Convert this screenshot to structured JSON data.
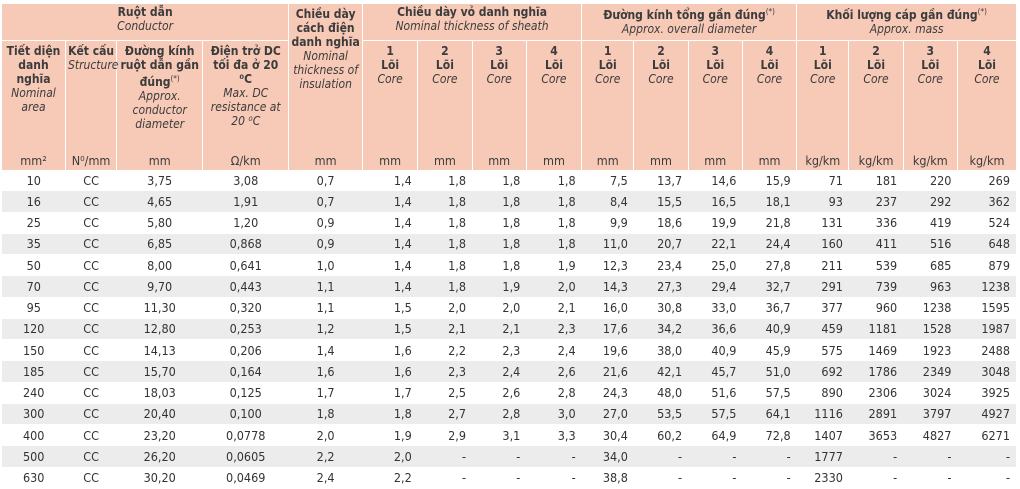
{
  "header": {
    "conductor": {
      "vi": "Ruột dẫn",
      "en": "Conductor"
    },
    "insulation": {
      "vi": "Chiều dày cách điện danh nghĩa",
      "en": "Nominal thickness of insulation",
      "unit": "mm"
    },
    "sheath": {
      "vi": "Chiều dày vỏ danh nghĩa",
      "en": "Nominal thickness of sheath"
    },
    "diameter": {
      "vi": "Đường kính tổng gần đúng",
      "sup": "(*)",
      "en": "Approx. overall diameter"
    },
    "mass": {
      "vi": "Khối lượng cáp gần đúng",
      "sup": "(*)",
      "en": "Approx. mass"
    },
    "area": {
      "vi": "Tiết diện danh nghĩa",
      "en": "Nominal area",
      "unit": "mm²"
    },
    "structure": {
      "vi": "Kết cấu",
      "en": "Structure",
      "unit": "N⁰/mm"
    },
    "cond_diameter": {
      "vi": "Đường kính ruột dẫn gần đúng",
      "sup": "(*)",
      "en": "Approx. conductor diameter",
      "unit": "mm"
    },
    "resistance": {
      "vi": "Điện trở DC tối đa ở 20 ⁰C",
      "en": "Max. DC resistance at 20 ⁰C",
      "unit": "Ω/km"
    },
    "cores": [
      {
        "num": "1",
        "vi": "Lõi",
        "en": "Core"
      },
      {
        "num": "2",
        "vi": "Lõi",
        "en": "Core"
      },
      {
        "num": "3",
        "vi": "Lõi",
        "en": "Core"
      },
      {
        "num": "4",
        "vi": "Lõi",
        "en": "Core"
      }
    ],
    "unit_mm": "mm",
    "unit_kgkm": "kg/km"
  },
  "rows": [
    [
      "10",
      "CC",
      "3,75",
      "3,08",
      "0,7",
      "1,4",
      "1,8",
      "1,8",
      "1,8",
      "7,5",
      "13,7",
      "14,6",
      "15,9",
      "71",
      "181",
      "220",
      "269"
    ],
    [
      "16",
      "CC",
      "4,65",
      "1,91",
      "0,7",
      "1,4",
      "1,8",
      "1,8",
      "1,8",
      "8,4",
      "15,5",
      "16,5",
      "18,1",
      "93",
      "237",
      "292",
      "362"
    ],
    [
      "25",
      "CC",
      "5,80",
      "1,20",
      "0,9",
      "1,4",
      "1,8",
      "1,8",
      "1,8",
      "9,9",
      "18,6",
      "19,9",
      "21,8",
      "131",
      "336",
      "419",
      "524"
    ],
    [
      "35",
      "CC",
      "6,85",
      "0,868",
      "0,9",
      "1,4",
      "1,8",
      "1,8",
      "1,8",
      "11,0",
      "20,7",
      "22,1",
      "24,4",
      "160",
      "411",
      "516",
      "648"
    ],
    [
      "50",
      "CC",
      "8,00",
      "0,641",
      "1,0",
      "1,4",
      "1,8",
      "1,8",
      "1,9",
      "12,3",
      "23,4",
      "25,0",
      "27,8",
      "211",
      "539",
      "685",
      "879"
    ],
    [
      "70",
      "CC",
      "9,70",
      "0,443",
      "1,1",
      "1,4",
      "1,8",
      "1,9",
      "2,0",
      "14,3",
      "27,3",
      "29,4",
      "32,7",
      "291",
      "739",
      "963",
      "1238"
    ],
    [
      "95",
      "CC",
      "11,30",
      "0,320",
      "1,1",
      "1,5",
      "2,0",
      "2,0",
      "2,1",
      "16,0",
      "30,8",
      "33,0",
      "36,7",
      "377",
      "960",
      "1238",
      "1595"
    ],
    [
      "120",
      "CC",
      "12,80",
      "0,253",
      "1,2",
      "1,5",
      "2,1",
      "2,1",
      "2,3",
      "17,6",
      "34,2",
      "36,6",
      "40,9",
      "459",
      "1181",
      "1528",
      "1987"
    ],
    [
      "150",
      "CC",
      "14,13",
      "0,206",
      "1,4",
      "1,6",
      "2,2",
      "2,3",
      "2,4",
      "19,6",
      "38,0",
      "40,9",
      "45,9",
      "575",
      "1469",
      "1923",
      "2488"
    ],
    [
      "185",
      "CC",
      "15,70",
      "0,164",
      "1,6",
      "1,6",
      "2,3",
      "2,4",
      "2,6",
      "21,6",
      "42,1",
      "45,7",
      "51,0",
      "692",
      "1786",
      "2349",
      "3048"
    ],
    [
      "240",
      "CC",
      "18,03",
      "0,125",
      "1,7",
      "1,7",
      "2,5",
      "2,6",
      "2,8",
      "24,3",
      "48,0",
      "51,6",
      "57,5",
      "890",
      "2306",
      "3024",
      "3925"
    ],
    [
      "300",
      "CC",
      "20,40",
      "0,100",
      "1,8",
      "1,8",
      "2,7",
      "2,8",
      "3,0",
      "27,0",
      "53,5",
      "57,5",
      "64,1",
      "1116",
      "2891",
      "3797",
      "4927"
    ],
    [
      "400",
      "CC",
      "23,20",
      "0,0778",
      "2,0",
      "1,9",
      "2,9",
      "3,1",
      "3,3",
      "30,4",
      "60,2",
      "64,9",
      "72,8",
      "1407",
      "3653",
      "4827",
      "6271"
    ],
    [
      "500",
      "CC",
      "26,20",
      "0,0605",
      "2,2",
      "2,0",
      "-",
      "-",
      "-",
      "34,0",
      "-",
      "-",
      "-",
      "1777",
      "-",
      "-",
      "-"
    ],
    [
      "630",
      "CC",
      "30,20",
      "0,0469",
      "2,4",
      "2,2",
      "-",
      "-",
      "-",
      "38,8",
      "-",
      "-",
      "-",
      "2330",
      "-",
      "-",
      "-"
    ]
  ]
}
